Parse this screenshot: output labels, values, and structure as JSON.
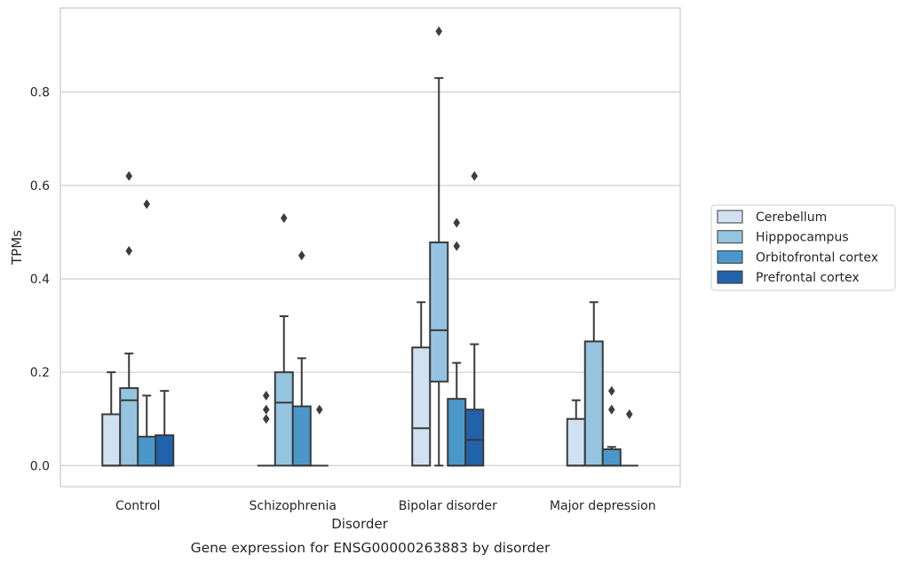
{
  "chart_data": {
    "type": "boxplot",
    "caption": "Gene expression for ENSG00000263883 by disorder",
    "xlabel": "Disorder",
    "ylabel": "TPMs",
    "ylim": [
      -0.045,
      0.98
    ],
    "yticks": [
      0.0,
      0.2,
      0.4,
      0.6,
      0.8
    ],
    "ytick_labels": [
      "0.0",
      "0.2",
      "0.4",
      "0.6",
      "0.8"
    ],
    "grid": "horizontal",
    "legend_position": "right",
    "categories": [
      "Control",
      "Schizophrenia",
      "Bipolar disorder",
      "Major depression"
    ],
    "series": [
      {
        "name": "Cerebellum",
        "color": "#d0e1f2",
        "boxes": [
          {
            "min": 0.0,
            "q1": 0.0,
            "median": 0.0,
            "q3": 0.11,
            "max": 0.2,
            "outliers": []
          },
          {
            "min": 0.0,
            "q1": 0.0,
            "median": 0.0,
            "q3": 0.0,
            "max": 0.0,
            "outliers": [
              0.1,
              0.12,
              0.15
            ]
          },
          {
            "min": 0.0,
            "q1": 0.0,
            "median": 0.08,
            "q3": 0.253,
            "max": 0.35,
            "outliers": []
          },
          {
            "min": 0.0,
            "q1": 0.0,
            "median": 0.0,
            "q3": 0.1,
            "max": 0.14,
            "outliers": []
          }
        ]
      },
      {
        "name": "Hipppocampus",
        "color": "#94c4df",
        "boxes": [
          {
            "min": 0.0,
            "q1": 0.0,
            "median": 0.14,
            "q3": 0.166,
            "max": 0.24,
            "outliers": [
              0.46,
              0.62
            ]
          },
          {
            "min": 0.0,
            "q1": 0.0,
            "median": 0.135,
            "q3": 0.2,
            "max": 0.32,
            "outliers": [
              0.53
            ]
          },
          {
            "min": 0.0,
            "q1": 0.18,
            "median": 0.29,
            "q3": 0.478,
            "max": 0.83,
            "outliers": [
              0.93
            ]
          },
          {
            "min": 0.0,
            "q1": 0.0,
            "median": 0.0,
            "q3": 0.266,
            "max": 0.35,
            "outliers": []
          }
        ]
      },
      {
        "name": "Orbitofrontal cortex",
        "color": "#4a98c9",
        "boxes": [
          {
            "min": 0.0,
            "q1": 0.0,
            "median": 0.0,
            "q3": 0.062,
            "max": 0.15,
            "outliers": [
              0.56
            ]
          },
          {
            "min": 0.0,
            "q1": 0.0,
            "median": 0.0,
            "q3": 0.127,
            "max": 0.23,
            "outliers": [
              0.45
            ]
          },
          {
            "min": 0.0,
            "q1": 0.0,
            "median": 0.0,
            "q3": 0.143,
            "max": 0.22,
            "outliers": [
              0.47,
              0.52
            ]
          },
          {
            "min": 0.0,
            "q1": 0.0,
            "median": 0.0,
            "q3": 0.035,
            "max": 0.04,
            "outliers": [
              0.12,
              0.16
            ]
          }
        ]
      },
      {
        "name": "Prefrontal cortex",
        "color": "#2163aa",
        "boxes": [
          {
            "min": 0.0,
            "q1": 0.0,
            "median": 0.0,
            "q3": 0.065,
            "max": 0.16,
            "outliers": []
          },
          {
            "min": 0.0,
            "q1": 0.0,
            "median": 0.0,
            "q3": 0.0,
            "max": 0.0,
            "outliers": [
              0.12
            ]
          },
          {
            "min": 0.0,
            "q1": 0.0,
            "median": 0.055,
            "q3": 0.12,
            "max": 0.26,
            "outliers": [
              0.62
            ]
          },
          {
            "min": 0.0,
            "q1": 0.0,
            "median": 0.0,
            "q3": 0.0,
            "max": 0.0,
            "outliers": [
              0.11
            ]
          }
        ]
      }
    ],
    "colors": {
      "edge": "#3a3a3a",
      "grid": "#cccccc",
      "frame": "#cccccc",
      "text": "#262626"
    }
  }
}
